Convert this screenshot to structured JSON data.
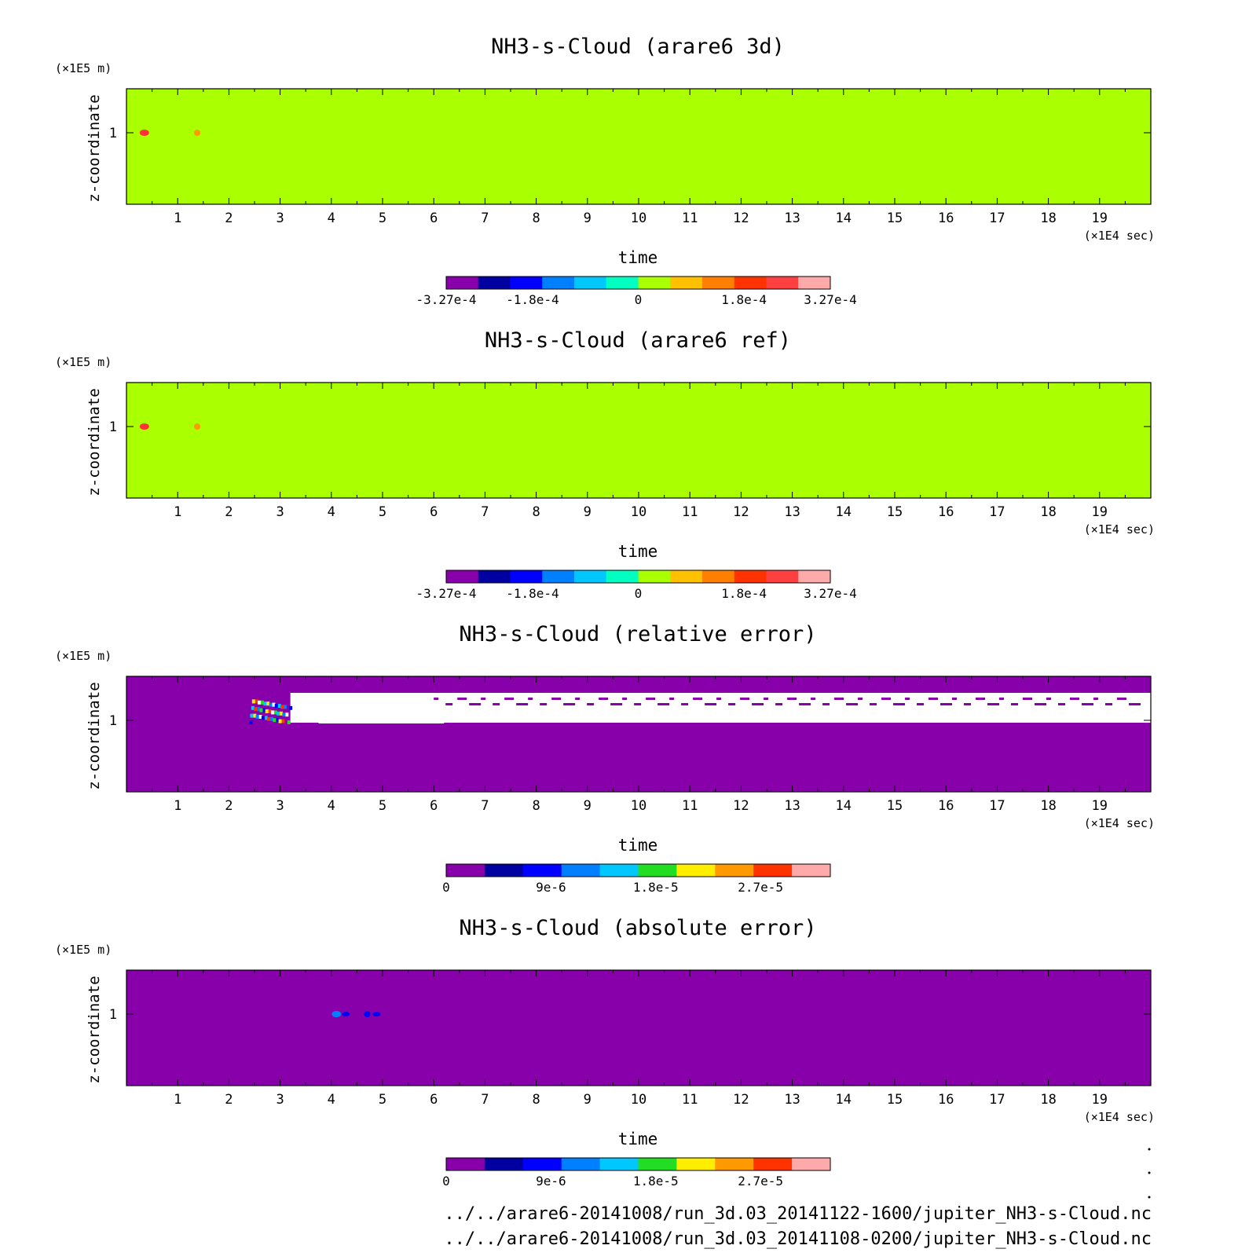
{
  "chart_data": [
    {
      "type": "heatmap",
      "title": "NH3-s-Cloud (arare6 3d)",
      "xlabel": "time",
      "ylabel": "z-coordinate",
      "x_unit": "(×1E4 sec)",
      "y_unit": "(×1E5 m)",
      "xlim": [
        0,
        20
      ],
      "x_ticks": [
        1,
        2,
        3,
        4,
        5,
        6,
        7,
        8,
        9,
        10,
        11,
        12,
        13,
        14,
        15,
        16,
        17,
        18,
        19
      ],
      "y_ticks": [
        1
      ],
      "background_value": 0,
      "background_color": "#aaff00",
      "features": [
        {
          "x": 0.35,
          "y": 1.0,
          "value": 0.00023,
          "color": "#ff3333"
        },
        {
          "x": 1.38,
          "y": 1.0,
          "value": 0.00012,
          "color": "#ff9900"
        }
      ],
      "colorbar": {
        "colors": [
          "#8800aa",
          "#0000a0",
          "#0000ff",
          "#0080ff",
          "#00c8ff",
          "#00ffc0",
          "#aaff00",
          "#ffc000",
          "#ff8000",
          "#ff3300",
          "#ff4040",
          "#ffaaaa"
        ],
        "tick_labels": [
          "-3.27e-4",
          "-1.8e-4",
          "0",
          "1.8e-4",
          "3.27e-4"
        ],
        "range": [
          -0.000327,
          0.000327
        ]
      }
    },
    {
      "type": "heatmap",
      "title": "NH3-s-Cloud (arare6 ref)",
      "xlabel": "time",
      "ylabel": "z-coordinate",
      "x_unit": "(×1E4 sec)",
      "y_unit": "(×1E5 m)",
      "xlim": [
        0,
        20
      ],
      "x_ticks": [
        1,
        2,
        3,
        4,
        5,
        6,
        7,
        8,
        9,
        10,
        11,
        12,
        13,
        14,
        15,
        16,
        17,
        18,
        19
      ],
      "y_ticks": [
        1
      ],
      "background_value": 0,
      "background_color": "#aaff00",
      "features": [
        {
          "x": 0.35,
          "y": 1.0,
          "value": 0.00023,
          "color": "#ff3333"
        },
        {
          "x": 1.38,
          "y": 1.0,
          "value": 0.00012,
          "color": "#ff9900"
        }
      ],
      "colorbar": {
        "colors": [
          "#8800aa",
          "#0000a0",
          "#0000ff",
          "#0080ff",
          "#00c8ff",
          "#00ffc0",
          "#aaff00",
          "#ffc000",
          "#ff8000",
          "#ff3300",
          "#ff4040",
          "#ffaaaa"
        ],
        "tick_labels": [
          "-3.27e-4",
          "-1.8e-4",
          "0",
          "1.8e-4",
          "3.27e-4"
        ],
        "range": [
          -0.000327,
          0.000327
        ]
      }
    },
    {
      "type": "heatmap",
      "title": "NH3-s-Cloud (relative error)",
      "xlabel": "time",
      "ylabel": "z-coordinate",
      "x_unit": "(×1E4 sec)",
      "y_unit": "(×1E5 m)",
      "xlim": [
        0,
        20
      ],
      "x_ticks": [
        1,
        2,
        3,
        4,
        5,
        6,
        7,
        8,
        9,
        10,
        11,
        12,
        13,
        14,
        15,
        16,
        17,
        18,
        19
      ],
      "y_ticks": [
        1
      ],
      "background_value": 0,
      "background_color": "#8800aa",
      "missing_band": {
        "x_start": 3.2,
        "x_end": 20,
        "y_from": 1.05,
        "y_to": 1.25,
        "color": "#ffffff"
      },
      "features": [
        {
          "x": 2.6,
          "y": 1.1,
          "value": 1e-05,
          "color": "#0000ff"
        },
        {
          "x": 4.5,
          "y": 1.05,
          "value": null,
          "color": "#ffffff"
        }
      ],
      "colorbar": {
        "colors": [
          "#8800aa",
          "#0000a0",
          "#0000ff",
          "#0080ff",
          "#00c8ff",
          "#22dd22",
          "#ffee00",
          "#ff9900",
          "#ff3300",
          "#ffaaaa"
        ],
        "tick_labels": [
          "0",
          "9e-6",
          "1.8e-5",
          "2.7e-5"
        ],
        "range": [
          0,
          3.3e-05
        ]
      }
    },
    {
      "type": "heatmap",
      "title": "NH3-s-Cloud (absolute error)",
      "xlabel": "time",
      "ylabel": "z-coordinate",
      "x_unit": "(×1E4 sec)",
      "y_unit": "(×1E5 m)",
      "xlim": [
        0,
        20
      ],
      "x_ticks": [
        1,
        2,
        3,
        4,
        5,
        6,
        7,
        8,
        9,
        10,
        11,
        12,
        13,
        14,
        15,
        16,
        17,
        18,
        19
      ],
      "y_ticks": [
        1
      ],
      "background_value": 0,
      "background_color": "#8800aa",
      "features": [
        {
          "x": 4.1,
          "y": 1.0,
          "value": 1.2e-05,
          "color": "#0080ff"
        },
        {
          "x": 4.7,
          "y": 1.0,
          "value": 5e-06,
          "color": "#0000ff"
        }
      ],
      "colorbar": {
        "colors": [
          "#8800aa",
          "#0000a0",
          "#0000ff",
          "#0080ff",
          "#00c8ff",
          "#22dd22",
          "#ffee00",
          "#ff9900",
          "#ff3300",
          "#ffaaaa"
        ],
        "tick_labels": [
          "0",
          "9e-6",
          "1.8e-5",
          "2.7e-5"
        ],
        "range": [
          0,
          3.3e-05
        ]
      }
    }
  ],
  "files": [
    "../../arare6-20141008/run_3d.03_20141122-1600/jupiter_NH3-s-Cloud.nc",
    "../../arare6-20141008/run_3d.03_20141108-0200/jupiter_NH3-s-Cloud.nc"
  ]
}
